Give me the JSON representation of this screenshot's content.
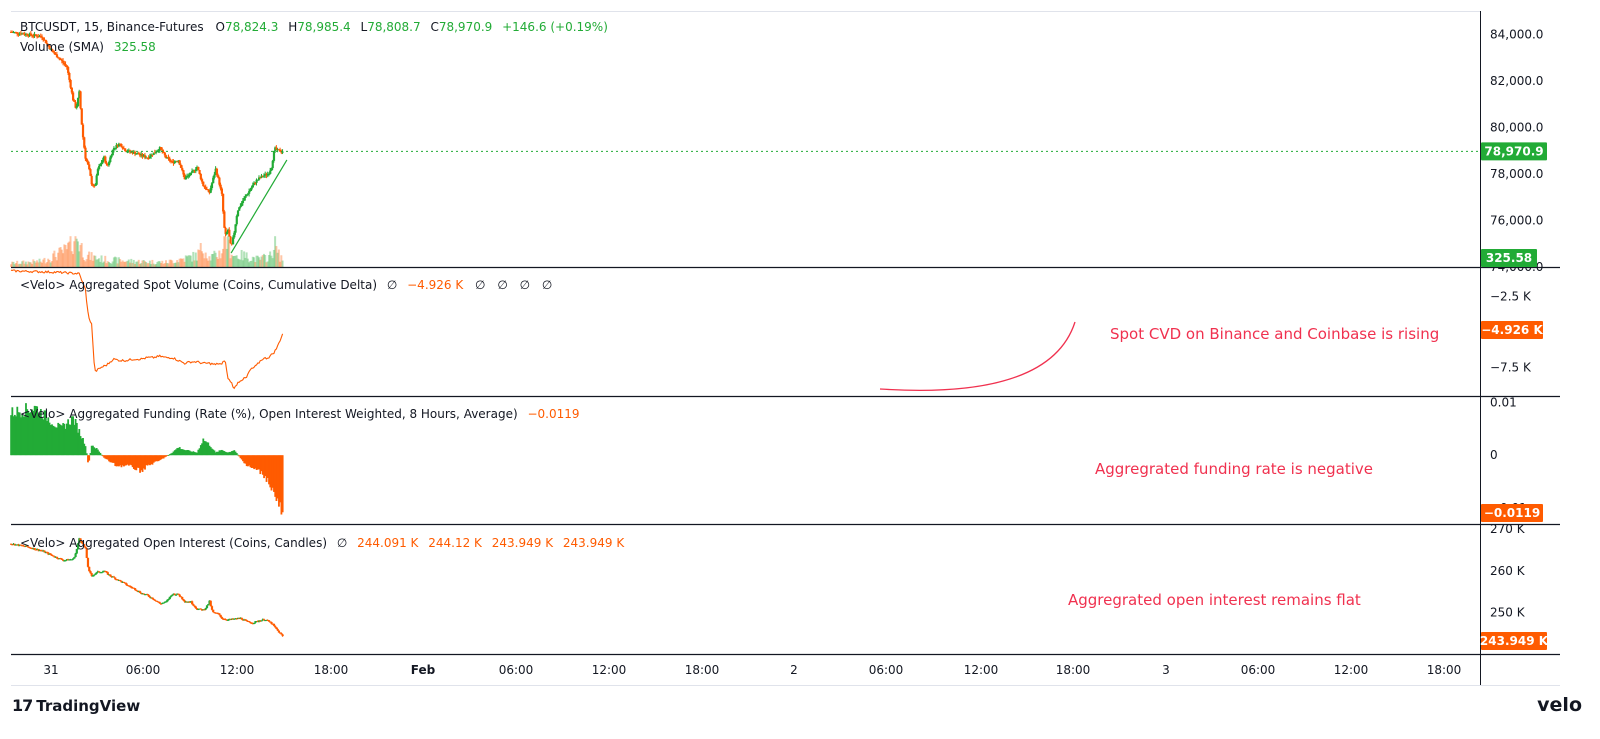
{
  "header": {
    "symbol": "BTCUSDT, 15, Binance-Futures",
    "o_label": "O",
    "o_val": "78,824.3",
    "h_label": "H",
    "h_val": "78,985.4",
    "l_label": "L",
    "l_val": "78,808.7",
    "c_label": "C",
    "c_val": "78,970.9",
    "change": "+146.6 (+0.19%)",
    "volume_label": "Volume (SMA)",
    "volume_val": "325.58"
  },
  "price_axis": {
    "ticks": [
      "84,000.0",
      "82,000.0",
      "80,000.0",
      "78,000.0",
      "76,000.0",
      "74,000.0"
    ],
    "last_price_badge": "78,970.9",
    "volume_badge": "325.58"
  },
  "cvd_pane": {
    "title": "<Velo> Aggregated Spot Volume (Coins, Cumulative Delta)",
    "null1": "∅",
    "value": "−4.926 K",
    "nulls": [
      "∅",
      "∅",
      "∅",
      "∅"
    ],
    "ticks": [
      "−2.5 K",
      "−7.5 K"
    ],
    "badge": "−4.926 K",
    "annotation": "Spot CVD on Binance and Coinbase is rising"
  },
  "funding_pane": {
    "title": "<Velo> Aggregated Funding (Rate (%), Open Interest Weighted, 8 Hours, Average)",
    "value": "−0.0119",
    "ticks": [
      "0.01",
      "0",
      "−0.01"
    ],
    "badge": "−0.0119",
    "annotation": "Aggregrated funding rate is negative"
  },
  "oi_pane": {
    "title": "<Velo> Aggregated Open Interest (Coins, Candles)",
    "null1": "∅",
    "values": [
      "244.091 K",
      "244.12 K",
      "243.949 K",
      "243.949 K"
    ],
    "ticks": [
      "270 K",
      "260 K",
      "250 K"
    ],
    "badge": "243.949 K",
    "annotation": "Aggregrated open interest remains flat"
  },
  "time_axis": {
    "labels": [
      "31",
      "06:00",
      "12:00",
      "18:00",
      "Feb",
      "06:00",
      "12:00",
      "18:00",
      "2",
      "06:00",
      "12:00",
      "18:00",
      "3",
      "06:00",
      "12:00",
      "18:00"
    ]
  },
  "footer": {
    "brand": "TradingView",
    "logo_mark": "17",
    "velo": "velo"
  },
  "colors": {
    "up": "#22ab36",
    "down": "#ff5b00",
    "annotation": "#f0314f",
    "grid": "#e0e3eb"
  },
  "chart_data": [
    {
      "type": "candlestick",
      "title": "BTCUSDT, 15, Binance-Futures",
      "x_range": [
        "31",
        "3 18:00"
      ],
      "ylim": [
        74000,
        85000
      ],
      "last_price": 78970.9,
      "price_path": [
        [
          0,
          84100
        ],
        [
          5,
          84000
        ],
        [
          10,
          83900
        ],
        [
          13,
          83300
        ],
        [
          16,
          82900
        ],
        [
          18,
          82600
        ],
        [
          20,
          81200
        ],
        [
          21,
          80800
        ],
        [
          22,
          81500
        ],
        [
          23,
          79800
        ],
        [
          24,
          78700
        ],
        [
          25,
          78300
        ],
        [
          26,
          77600
        ],
        [
          27,
          77400
        ],
        [
          28,
          78200
        ],
        [
          30,
          78700
        ],
        [
          31,
          78300
        ],
        [
          33,
          79100
        ],
        [
          35,
          79300
        ],
        [
          37,
          79000
        ],
        [
          40,
          78900
        ],
        [
          42,
          78800
        ],
        [
          44,
          78700
        ],
        [
          46,
          78900
        ],
        [
          48,
          79100
        ],
        [
          50,
          78700
        ],
        [
          52,
          78500
        ],
        [
          54,
          78600
        ],
        [
          56,
          77800
        ],
        [
          58,
          78000
        ],
        [
          60,
          78300
        ],
        [
          62,
          77500
        ],
        [
          64,
          77200
        ],
        [
          66,
          78200
        ],
        [
          67,
          77700
        ],
        [
          68,
          77100
        ],
        [
          69,
          75300
        ],
        [
          70,
          75600
        ],
        [
          71,
          74800
        ],
        [
          72,
          75500
        ],
        [
          73,
          76400
        ],
        [
          75,
          76900
        ],
        [
          77,
          77300
        ],
        [
          79,
          77700
        ],
        [
          81,
          77900
        ],
        [
          83,
          78000
        ],
        [
          84,
          78300
        ],
        [
          85,
          79100
        ],
        [
          86,
          79000
        ],
        [
          88,
          78970
        ]
      ],
      "volume_path": [
        [
          0,
          20
        ],
        [
          10,
          30
        ],
        [
          18,
          90
        ],
        [
          20,
          140
        ],
        [
          21,
          180
        ],
        [
          22,
          130
        ],
        [
          24,
          60
        ],
        [
          30,
          40
        ],
        [
          40,
          30
        ],
        [
          50,
          25
        ],
        [
          60,
          60
        ],
        [
          62,
          110
        ],
        [
          64,
          50
        ],
        [
          66,
          60
        ],
        [
          68,
          80
        ],
        [
          69,
          190
        ],
        [
          70,
          120
        ],
        [
          72,
          60
        ],
        [
          75,
          60
        ],
        [
          80,
          40
        ],
        [
          84,
          60
        ],
        [
          85,
          150
        ],
        [
          86,
          70
        ],
        [
          88,
          40
        ]
      ],
      "trendline": [
        [
          71,
          74600
        ],
        [
          89,
          78600
        ]
      ]
    },
    {
      "type": "line",
      "title": "<Velo> Aggregated Spot Volume (Coins, Cumulative Delta)",
      "ylim": [
        -9500,
        -500
      ],
      "path": [
        [
          0,
          -700
        ],
        [
          15,
          -800
        ],
        [
          22,
          -900
        ],
        [
          24,
          -2000
        ],
        [
          25,
          -4000
        ],
        [
          26,
          -4400
        ],
        [
          27,
          -7800
        ],
        [
          29,
          -7500
        ],
        [
          31,
          -7300
        ],
        [
          33,
          -6900
        ],
        [
          35,
          -7000
        ],
        [
          37,
          -7000
        ],
        [
          40,
          -6900
        ],
        [
          42,
          -6900
        ],
        [
          44,
          -6800
        ],
        [
          46,
          -6800
        ],
        [
          48,
          -6700
        ],
        [
          50,
          -6800
        ],
        [
          52,
          -6800
        ],
        [
          54,
          -7000
        ],
        [
          56,
          -7200
        ],
        [
          58,
          -7100
        ],
        [
          60,
          -7100
        ],
        [
          62,
          -7200
        ],
        [
          64,
          -7200
        ],
        [
          66,
          -7300
        ],
        [
          67,
          -7200
        ],
        [
          68,
          -7300
        ],
        [
          69,
          -6900
        ],
        [
          70,
          -8300
        ],
        [
          71,
          -8500
        ],
        [
          72,
          -9000
        ],
        [
          73,
          -8600
        ],
        [
          74,
          -8400
        ],
        [
          76,
          -8200
        ],
        [
          77,
          -7700
        ],
        [
          79,
          -7400
        ],
        [
          81,
          -6900
        ],
        [
          83,
          -6800
        ],
        [
          85,
          -6400
        ],
        [
          86,
          -6000
        ],
        [
          88,
          -4926
        ]
      ]
    },
    {
      "type": "bar",
      "title": "<Velo> Aggregated Funding (Rate (%), Open Interest Weighted, 8 Hours, Average)",
      "ylim": [
        -0.013,
        0.011
      ],
      "path": [
        [
          0,
          0.008
        ],
        [
          8,
          0.009
        ],
        [
          12,
          0.007
        ],
        [
          16,
          0.005
        ],
        [
          20,
          0.007
        ],
        [
          24,
          0.002
        ],
        [
          25,
          -0.002
        ],
        [
          26,
          0.002
        ],
        [
          28,
          0.001
        ],
        [
          30,
          -0.0005
        ],
        [
          34,
          -0.002
        ],
        [
          38,
          -0.002
        ],
        [
          42,
          -0.003
        ],
        [
          44,
          -0.002
        ],
        [
          48,
          -0.001
        ],
        [
          52,
          0.0005
        ],
        [
          54,
          0.0015
        ],
        [
          56,
          0.001
        ],
        [
          60,
          0.0005
        ],
        [
          62,
          0.003
        ],
        [
          64,
          0.002
        ],
        [
          66,
          0.0005
        ],
        [
          68,
          0.001
        ],
        [
          70,
          0.0005
        ],
        [
          72,
          0.001
        ],
        [
          74,
          -0.0005
        ],
        [
          76,
          -0.002
        ],
        [
          80,
          -0.003
        ],
        [
          82,
          -0.004
        ],
        [
          84,
          -0.006
        ],
        [
          86,
          -0.009
        ],
        [
          88,
          -0.0119
        ]
      ]
    },
    {
      "type": "candlestick",
      "title": "<Velo> Aggregated Open Interest (Coins, Candles)",
      "ylim": [
        240000,
        271000
      ],
      "path": [
        [
          0,
          266500
        ],
        [
          5,
          265800
        ],
        [
          10,
          264800
        ],
        [
          14,
          263400
        ],
        [
          17,
          262500
        ],
        [
          20,
          262800
        ],
        [
          21,
          264500
        ],
        [
          22,
          267800
        ],
        [
          23,
          266600
        ],
        [
          24,
          265200
        ],
        [
          25,
          260000
        ],
        [
          26,
          258800
        ],
        [
          28,
          259700
        ],
        [
          30,
          259900
        ],
        [
          32,
          258800
        ],
        [
          34,
          258000
        ],
        [
          36,
          257200
        ],
        [
          38,
          256300
        ],
        [
          40,
          255600
        ],
        [
          42,
          254600
        ],
        [
          44,
          254100
        ],
        [
          46,
          253200
        ],
        [
          48,
          252100
        ],
        [
          50,
          252500
        ],
        [
          52,
          254400
        ],
        [
          54,
          254300
        ],
        [
          56,
          252700
        ],
        [
          58,
          252500
        ],
        [
          60,
          250800
        ],
        [
          62,
          250600
        ],
        [
          63,
          251300
        ],
        [
          64,
          252600
        ],
        [
          65,
          250000
        ],
        [
          67,
          249600
        ],
        [
          68,
          248600
        ],
        [
          70,
          248200
        ],
        [
          72,
          248400
        ],
        [
          74,
          248600
        ],
        [
          76,
          247800
        ],
        [
          78,
          247500
        ],
        [
          80,
          248000
        ],
        [
          82,
          248300
        ],
        [
          84,
          247400
        ],
        [
          86,
          245600
        ],
        [
          88,
          243949
        ]
      ]
    }
  ]
}
